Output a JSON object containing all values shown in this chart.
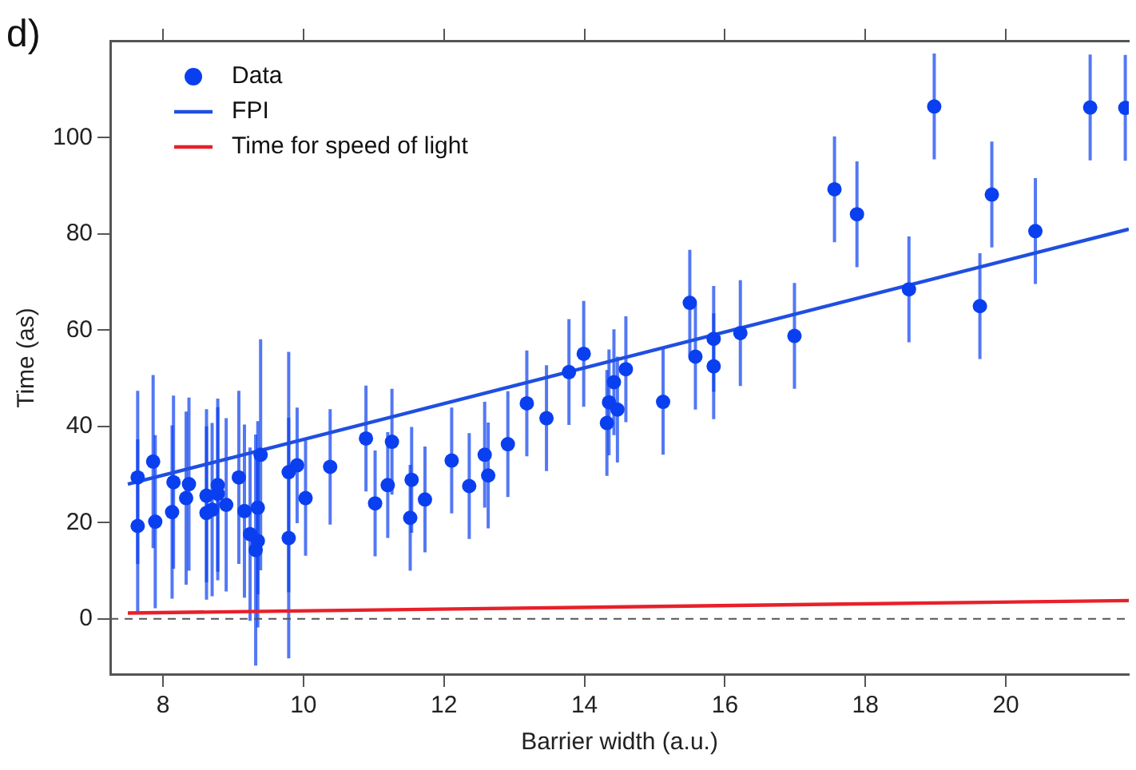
{
  "chart_data": {
    "type": "scatter",
    "title": "d)",
    "xlabel": "Barrier width (a.u.)",
    "ylabel": "Time (as)",
    "xlim": [
      7.25,
      21.75
    ],
    "xticks": [
      8,
      10,
      12,
      14,
      16,
      18,
      20
    ],
    "ylim": [
      -11.5,
      120
    ],
    "yticks": [
      0,
      20,
      40,
      60,
      80,
      100
    ],
    "grid": false,
    "legend": "top left",
    "ref_lines": [
      {
        "axis": "y",
        "value": 0,
        "color": "#555555",
        "line_style": "dashed"
      }
    ],
    "series": [
      {
        "name": "Data",
        "color": "#0a3ff0",
        "marker": "circle",
        "x": [
          7.64,
          7.64,
          7.86,
          7.89,
          8.15,
          8.13,
          8.33,
          8.37,
          8.62,
          8.62,
          8.7,
          8.78,
          8.78,
          8.9,
          9.08,
          9.16,
          9.35,
          9.39,
          9.24,
          9.35,
          9.32,
          9.79,
          9.79,
          9.91,
          10.03,
          10.38,
          10.89,
          11.02,
          11.2,
          11.26,
          11.54,
          11.52,
          11.73,
          12.11,
          12.36,
          12.58,
          12.63,
          12.91,
          13.18,
          13.46,
          13.78,
          13.99,
          14.32,
          14.35,
          14.42,
          14.47,
          14.59,
          15.12,
          15.5,
          15.58,
          15.84,
          15.84,
          16.22,
          16.99,
          17.56,
          17.88,
          18.62,
          18.98,
          19.63,
          19.8,
          20.42,
          21.2,
          21.7
        ],
        "values": [
          29.4,
          19.3,
          32.7,
          20.2,
          28.4,
          22.2,
          25.1,
          28,
          25.6,
          22,
          22.7,
          27.8,
          26,
          23.7,
          29.4,
          22.4,
          23.1,
          34.1,
          17.6,
          16.2,
          14.3,
          30.5,
          16.8,
          31.9,
          25.1,
          31.6,
          37.5,
          24,
          27.8,
          36.8,
          28.9,
          21,
          24.8,
          32.9,
          27.6,
          34.1,
          29.8,
          36.3,
          44.8,
          41.7,
          51.3,
          55.1,
          40.7,
          45,
          49.2,
          43.5,
          51.9,
          45.1,
          65.7,
          54.5,
          58.2,
          52.5,
          59.4,
          58.8,
          89.3,
          84.1,
          68.5,
          106.5,
          65,
          88.2,
          80.6,
          106.3,
          106.2
        ],
        "errors": [
          18,
          18,
          18,
          18,
          18,
          18,
          18,
          18,
          18,
          18,
          18,
          18,
          18,
          18,
          18,
          18,
          18,
          24,
          18,
          18,
          24,
          25,
          25,
          12,
          12,
          12,
          11,
          11,
          11,
          11,
          11,
          11,
          11,
          11,
          11,
          11,
          11,
          11,
          11,
          11,
          11,
          11,
          11,
          11,
          11,
          11,
          11,
          11,
          11,
          11,
          11,
          11,
          11,
          11,
          11,
          11,
          11,
          11,
          11,
          11,
          11,
          11,
          11
        ]
      },
      {
        "name": "FPI",
        "type": "line",
        "marker": "none",
        "color": "#1f4fe0",
        "x": [
          7.5,
          21.75
        ],
        "values": [
          28,
          81
        ]
      },
      {
        "name": "Time for speed of light",
        "type": "line",
        "marker": "none",
        "color": "#e8202a",
        "x": [
          7.5,
          21.75
        ],
        "values": [
          1.2,
          3.8
        ]
      }
    ]
  }
}
